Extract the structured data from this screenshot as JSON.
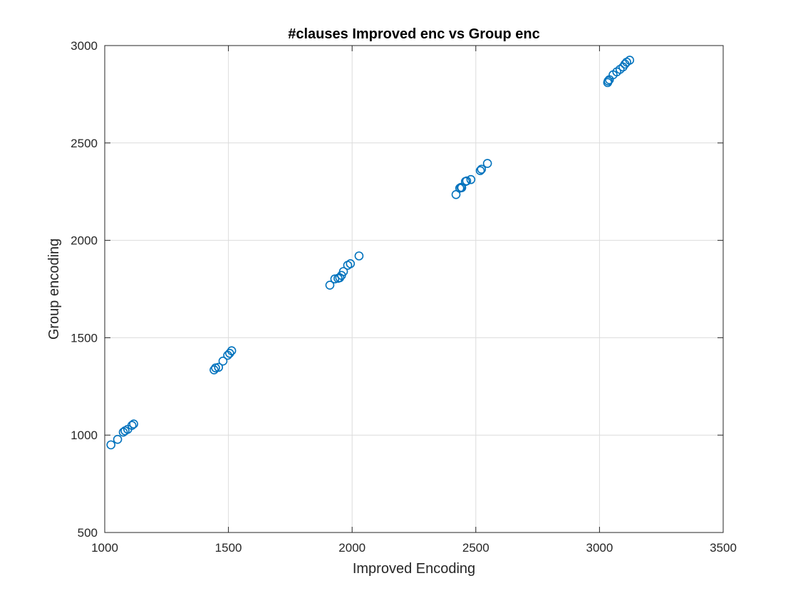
{
  "chart_data": {
    "type": "scatter",
    "title": "#clauses Improved enc vs Group enc",
    "xlabel": "Improved Encoding",
    "ylabel": "Group encoding",
    "xlim": [
      1000,
      3500
    ],
    "ylim": [
      500,
      3000
    ],
    "xticks": [
      1000,
      1500,
      2000,
      2500,
      3000,
      3500
    ],
    "yticks": [
      500,
      1000,
      1500,
      2000,
      2500,
      3000
    ],
    "grid": true,
    "marker": "circle-open",
    "color": "#0072bd",
    "series": [
      {
        "x": [
          1025,
          1052,
          1075,
          1082,
          1093,
          1110,
          1117,
          1442,
          1448,
          1460,
          1478,
          1497,
          1505,
          1513,
          1910,
          1930,
          1943,
          1950,
          1957,
          1965,
          1982,
          1993,
          2028,
          2420,
          2435,
          2440,
          2443,
          2458,
          2463,
          2480,
          2518,
          2523,
          2547,
          3033,
          3035,
          3040,
          3055,
          3070,
          3083,
          3095,
          3103,
          3110,
          3122
        ],
        "y": [
          950,
          978,
          1015,
          1022,
          1030,
          1050,
          1057,
          1335,
          1345,
          1348,
          1380,
          1410,
          1420,
          1433,
          1770,
          1802,
          1805,
          1808,
          1820,
          1840,
          1872,
          1880,
          1920,
          2235,
          2268,
          2272,
          2270,
          2302,
          2305,
          2312,
          2358,
          2365,
          2395,
          2810,
          2818,
          2825,
          2850,
          2865,
          2878,
          2890,
          2905,
          2915,
          2925
        ]
      }
    ]
  }
}
